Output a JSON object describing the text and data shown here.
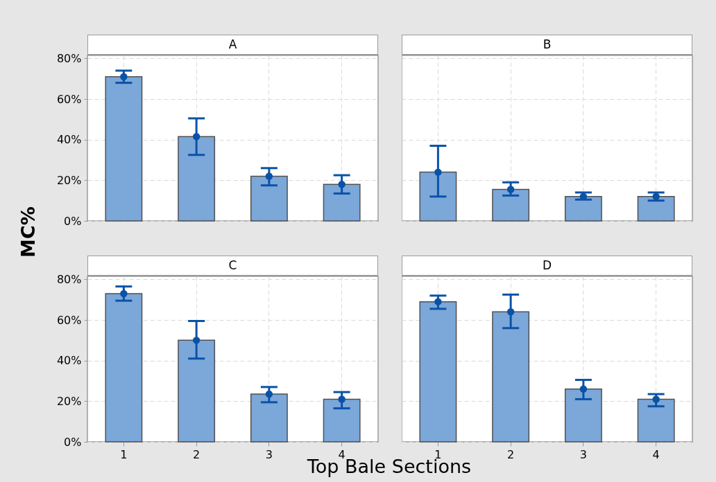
{
  "chart_data": [
    {
      "type": "bar",
      "title": "A",
      "ylabel": "MC%",
      "categories": [
        "1",
        "2",
        "3",
        "4"
      ],
      "ylim": [
        0,
        81.5
      ],
      "yticks": [
        {
          "value": 0,
          "label": "0%"
        },
        {
          "value": 20,
          "label": "20%"
        },
        {
          "value": 40,
          "label": "40%"
        },
        {
          "value": 60,
          "label": "60%"
        },
        {
          "value": 80,
          "label": "80%"
        }
      ],
      "grid": true,
      "tick_labels": "y",
      "marker": "circle",
      "series": [
        {
          "color": "#7ba7d9",
          "values": [
            71,
            41.5,
            22,
            18
          ]
        },
        {
          "type": "scatter",
          "color": "#0a52a8",
          "values": [
            71,
            41.5,
            22,
            18
          ],
          "errors": [
            [
              68,
              74
            ],
            [
              32.5,
              50.5
            ],
            [
              17.5,
              26
            ],
            [
              13.5,
              22.5
            ]
          ]
        }
      ]
    },
    {
      "type": "bar",
      "title": "B",
      "categories": [
        "1",
        "2",
        "3",
        "4"
      ],
      "ylim": [
        0,
        81.5
      ],
      "yticks": [
        0,
        20,
        40,
        60,
        80
      ],
      "grid": true,
      "tick_labels": false,
      "marker": "circle",
      "series": [
        {
          "color": "#7ba7d9",
          "values": [
            24,
            15.5,
            12,
            12
          ]
        },
        {
          "type": "scatter",
          "color": "#0a52a8",
          "values": [
            24,
            15.5,
            12,
            12
          ],
          "errors": [
            [
              12,
              37
            ],
            [
              12.5,
              19
            ],
            [
              10.5,
              14
            ],
            [
              10,
              14
            ]
          ]
        }
      ]
    },
    {
      "type": "bar",
      "title": "C",
      "xlabel": "Top Bale Sections",
      "categories": [
        "1",
        "2",
        "3",
        "4"
      ],
      "ylim": [
        0,
        81.5
      ],
      "yticks": [
        {
          "value": 0,
          "label": "0%"
        },
        {
          "value": 20,
          "label": "20%"
        },
        {
          "value": 40,
          "label": "40%"
        },
        {
          "value": 60,
          "label": "60%"
        },
        {
          "value": 80,
          "label": "80%"
        }
      ],
      "grid": true,
      "marker": "circle",
      "series": [
        {
          "color": "#7ba7d9",
          "values": [
            73,
            50,
            23.5,
            21
          ]
        },
        {
          "type": "scatter",
          "color": "#0a52a8",
          "values": [
            73,
            50,
            23.5,
            21
          ],
          "errors": [
            [
              69.5,
              76.5
            ],
            [
              41,
              59.5
            ],
            [
              19.5,
              27
            ],
            [
              16.5,
              24.5
            ]
          ]
        }
      ]
    },
    {
      "type": "bar",
      "title": "D",
      "categories": [
        "1",
        "2",
        "3",
        "4"
      ],
      "ylim": [
        0,
        81.5
      ],
      "yticks": [
        0,
        20,
        40,
        60,
        80
      ],
      "grid": true,
      "tick_labels": "x",
      "marker": "circle",
      "series": [
        {
          "color": "#7ba7d9",
          "values": [
            69,
            64,
            26,
            21
          ]
        },
        {
          "type": "scatter",
          "color": "#0a52a8",
          "values": [
            69,
            64,
            26,
            21
          ],
          "errors": [
            [
              65.5,
              72
            ],
            [
              56,
              72.5
            ],
            [
              21,
              30.5
            ],
            [
              17.5,
              23.5
            ]
          ]
        }
      ]
    }
  ]
}
